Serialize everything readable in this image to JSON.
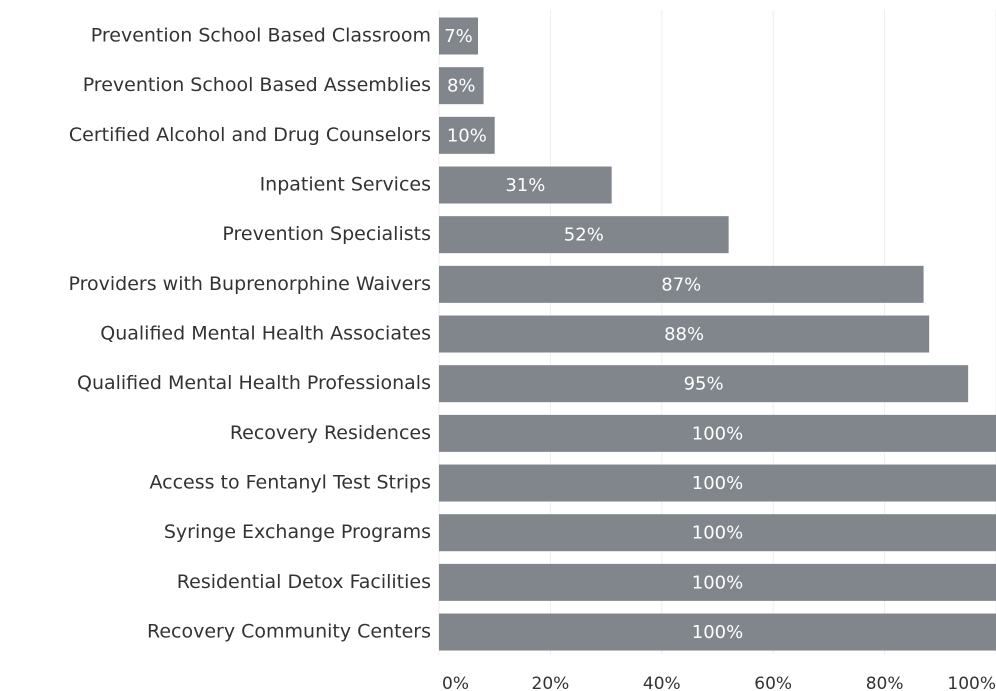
{
  "chart_data": {
    "type": "bar",
    "orientation": "horizontal",
    "categories": [
      "Prevention School Based Classroom",
      "Prevention School Based Assemblies",
      "Certified Alcohol and Drug Counselors",
      "Inpatient Services",
      "Prevention Specialists",
      "Providers with Buprenorphine Waivers",
      "Qualified Mental Health Associates",
      "Qualified Mental Health Professionals",
      "Recovery Residences",
      "Access to Fentanyl Test Strips",
      "Syringe Exchange Programs",
      "Residential Detox Facilities",
      "Recovery Community Centers"
    ],
    "values": [
      7,
      8,
      10,
      31,
      52,
      87,
      88,
      95,
      100,
      100,
      100,
      100,
      100
    ],
    "value_labels": [
      "7%",
      "8%",
      "10%",
      "31%",
      "52%",
      "87%",
      "88%",
      "95%",
      "100%",
      "100%",
      "100%",
      "100%",
      "100%"
    ],
    "color": "#80868c",
    "xlim": [
      0,
      100
    ],
    "xticks": [
      {
        "value": 0,
        "label": "0%"
      },
      {
        "value": 20,
        "label": "20%"
      },
      {
        "value": 40,
        "label": "40%"
      },
      {
        "value": 60,
        "label": "60%"
      },
      {
        "value": 80,
        "label": "80%"
      },
      {
        "value": 100,
        "label": "100%"
      }
    ],
    "grid": true
  }
}
